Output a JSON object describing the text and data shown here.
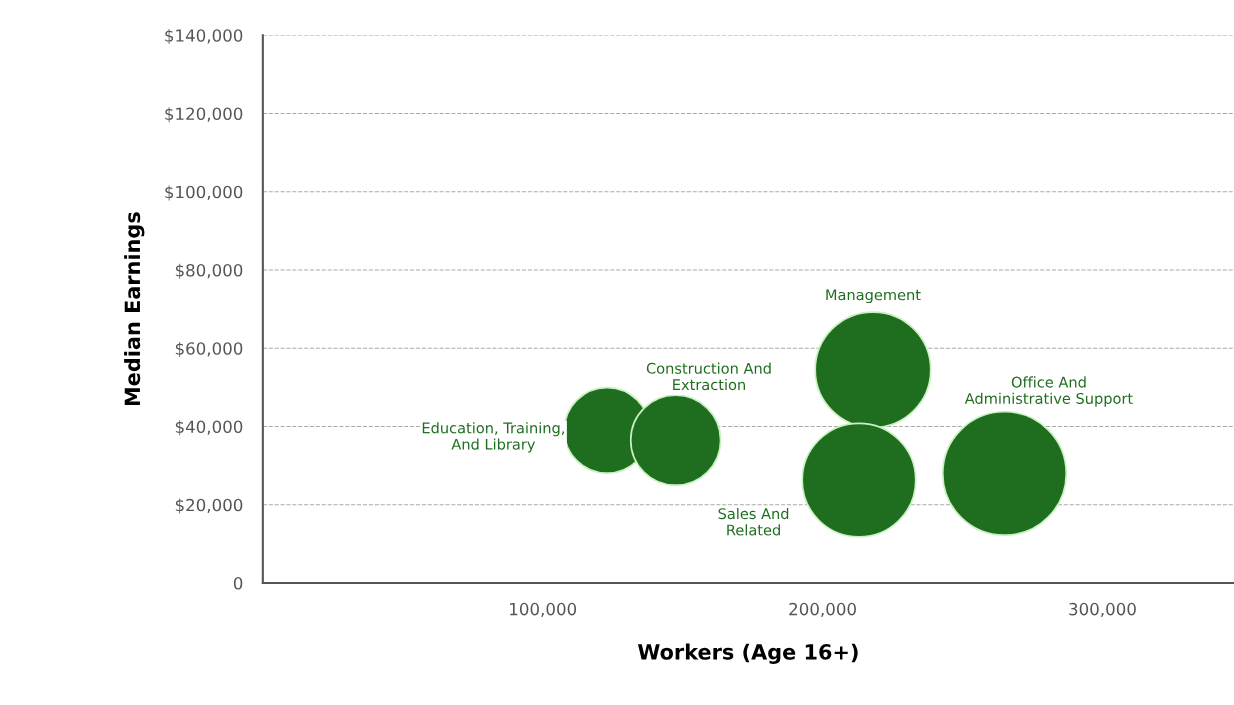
{
  "chart_data": {
    "type": "bubble",
    "xlabel": "Workers (Age 16+)",
    "ylabel": "Median Earnings",
    "xlim": [
      0,
      347000
    ],
    "xticks": [
      {
        "value": 100000,
        "label": "100,000"
      },
      {
        "value": 200000,
        "label": "200,000"
      },
      {
        "value": 300000,
        "label": "300,000"
      }
    ],
    "ylim": [
      0,
      140000
    ],
    "yticks": [
      0,
      {
        "value": 20000,
        "label": "$20,000"
      },
      {
        "value": 40000,
        "label": "$40,000"
      },
      {
        "value": 60000,
        "label": "$60,000"
      },
      {
        "value": 80000,
        "label": "$80,000"
      },
      {
        "value": 100000,
        "label": "$100,000"
      },
      {
        "value": 120000,
        "label": "$120,000"
      },
      {
        "value": 140000,
        "label": "$140,000"
      }
    ],
    "grid": "y",
    "legend": false,
    "series": [
      {
        "name": "Education, Training,\nAnd Library",
        "color": "#1f6e1f",
        "x": [
          123000
        ],
        "values": [
          39000
        ],
        "sizes": [
          0.48
        ]
      },
      {
        "name": "Construction And\nExtraction",
        "color": "#1f6e1f",
        "x": [
          147500
        ],
        "values": [
          36500
        ],
        "sizes": [
          0.53
        ]
      },
      {
        "name": "Management",
        "color": "#1f6e1f",
        "x": [
          218000
        ],
        "values": [
          54500
        ],
        "sizes": [
          0.875
        ]
      },
      {
        "name": "Sales And\nRelated",
        "color": "#1f6e1f",
        "x": [
          213000
        ],
        "values": [
          26300
        ],
        "sizes": [
          0.845
        ]
      },
      {
        "name": "Office And\nAdministrative Support",
        "color": "#1f6e1f",
        "x": [
          265000
        ],
        "values": [
          28000
        ],
        "sizes": [
          1
        ]
      }
    ]
  }
}
